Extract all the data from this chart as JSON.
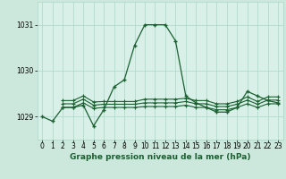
{
  "title": "Graphe pression niveau de la mer (hPa)",
  "background_color": "#cce8dc",
  "plot_bg_color": "#d8f0e8",
  "grid_color": "#a8d8c8",
  "line_color": "#1a6030",
  "xlim": [
    -0.5,
    23.5
  ],
  "ylim": [
    1028.5,
    1031.5
  ],
  "yticks": [
    1029,
    1030,
    1031
  ],
  "xticks": [
    0,
    1,
    2,
    3,
    4,
    5,
    6,
    7,
    8,
    9,
    10,
    11,
    12,
    13,
    14,
    15,
    16,
    17,
    18,
    19,
    20,
    21,
    22,
    23
  ],
  "series0": {
    "x": [
      0,
      1,
      2,
      3,
      4,
      5,
      6,
      7,
      8,
      9,
      10,
      11,
      12,
      13,
      14,
      15,
      16,
      17,
      18,
      19,
      20,
      21,
      22,
      23
    ],
    "y": [
      1029.0,
      1028.9,
      1029.2,
      1029.2,
      1029.25,
      1028.8,
      1029.15,
      1029.65,
      1029.8,
      1030.55,
      1031.0,
      1031.0,
      1031.0,
      1030.65,
      1029.45,
      1029.3,
      1029.2,
      1029.1,
      1029.1,
      1029.2,
      1029.55,
      1029.45,
      1029.35,
      1029.3
    ]
  },
  "series1": {
    "x": [
      2,
      3,
      4,
      5,
      6,
      7,
      8,
      9,
      10,
      11,
      12,
      13,
      14,
      15,
      16,
      17,
      18,
      19,
      20,
      21,
      22,
      23
    ],
    "y": [
      1029.2,
      1029.2,
      1029.3,
      1029.18,
      1029.2,
      1029.2,
      1029.2,
      1029.2,
      1029.22,
      1029.22,
      1029.22,
      1029.22,
      1029.25,
      1029.2,
      1029.2,
      1029.15,
      1029.15,
      1029.2,
      1029.28,
      1029.2,
      1029.28,
      1029.28
    ]
  },
  "series2": {
    "x": [
      2,
      3,
      4,
      5,
      6,
      7,
      8,
      9,
      10,
      11,
      12,
      13,
      14,
      15,
      16,
      17,
      18,
      19,
      20,
      21,
      22,
      23
    ],
    "y": [
      1029.28,
      1029.28,
      1029.38,
      1029.25,
      1029.27,
      1029.27,
      1029.27,
      1029.27,
      1029.3,
      1029.3,
      1029.3,
      1029.3,
      1029.33,
      1029.28,
      1029.28,
      1029.22,
      1029.22,
      1029.27,
      1029.36,
      1029.27,
      1029.36,
      1029.36
    ]
  },
  "series3": {
    "x": [
      2,
      3,
      4,
      5,
      6,
      7,
      8,
      9,
      10,
      11,
      12,
      13,
      14,
      15,
      16,
      17,
      18,
      19,
      20,
      21,
      22,
      23
    ],
    "y": [
      1029.35,
      1029.35,
      1029.45,
      1029.32,
      1029.33,
      1029.33,
      1029.33,
      1029.33,
      1029.38,
      1029.38,
      1029.38,
      1029.38,
      1029.4,
      1029.35,
      1029.35,
      1029.28,
      1029.28,
      1029.33,
      1029.43,
      1029.33,
      1029.43,
      1029.43
    ]
  },
  "xlabel_fontsize": 6.5,
  "tick_fontsize": 5.5
}
